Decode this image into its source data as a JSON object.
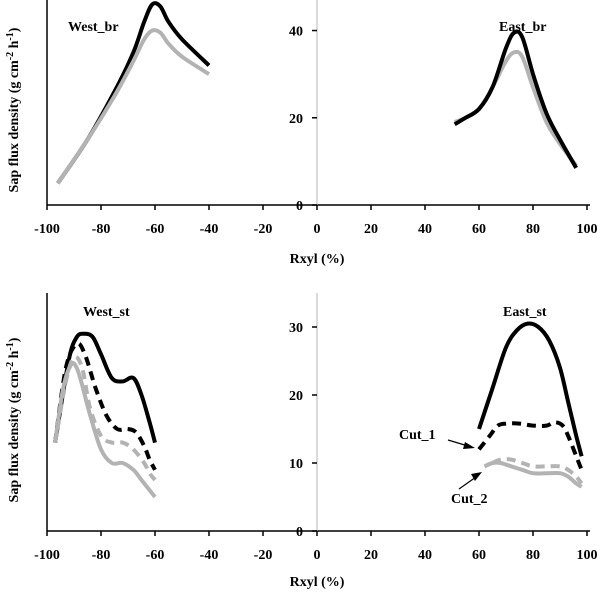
{
  "chart_data": [
    {
      "type": "line",
      "panel": "top",
      "xlabel": "Rxyl (%)",
      "ylabel": "Sap flux density (g cm-2 h-1)",
      "xlim": [
        -100,
        100
      ],
      "ylim": [
        0,
        47
      ],
      "xticks": [
        "-100",
        "-80",
        "-60",
        "-40",
        "-20",
        "0",
        "20",
        "40",
        "60",
        "80",
        "100"
      ],
      "yticks": [
        "0",
        "20",
        "40"
      ],
      "panel_labels": [
        "West_br",
        "East_br"
      ],
      "series": [
        {
          "name": "West_br black",
          "color": "#000000",
          "dash": "solid",
          "x": [
            -96,
            -85,
            -75,
            -68,
            -64,
            -61,
            -58,
            -55,
            -50,
            -40
          ],
          "y": [
            5,
            15,
            26,
            35,
            42,
            46,
            45.5,
            42,
            38,
            32
          ]
        },
        {
          "name": "West_br gray",
          "color": "#b3b3b3",
          "dash": "solid",
          "x": [
            -96,
            -85,
            -75,
            -68,
            -64,
            -61,
            -58,
            -55,
            -50,
            -40
          ],
          "y": [
            5,
            15,
            25,
            33,
            38,
            40,
            39.5,
            37,
            34,
            30
          ]
        },
        {
          "name": "East_br gray",
          "color": "#b3b3b3",
          "dash": "solid",
          "x": [
            51,
            55,
            60,
            65,
            70,
            73,
            76,
            80,
            85,
            90,
            96
          ],
          "y": [
            19,
            20,
            22,
            27,
            33,
            35,
            34,
            27,
            19,
            14,
            9
          ]
        },
        {
          "name": "East_br black",
          "color": "#000000",
          "dash": "solid",
          "x": [
            51,
            55,
            60,
            65,
            70,
            73,
            76,
            80,
            85,
            90,
            96
          ],
          "y": [
            18.5,
            20,
            22,
            27,
            36,
            39.5,
            38.5,
            30,
            21,
            15,
            8.5
          ]
        }
      ]
    },
    {
      "type": "line",
      "panel": "bottom",
      "xlabel": "Rxyl (%)",
      "ylabel": "Sap flux density (g cm-2 h-1)",
      "xlim": [
        -100,
        100
      ],
      "ylim": [
        0,
        35
      ],
      "xticks": [
        "-100",
        "-80",
        "-60",
        "-40",
        "-20",
        "0",
        "20",
        "40",
        "60",
        "80",
        "100"
      ],
      "yticks": [
        "0",
        "10",
        "20",
        "30"
      ],
      "panel_labels": [
        "West_st",
        "East_st",
        "Cut_1",
        "Cut_2"
      ],
      "series": [
        {
          "name": "West_st black",
          "color": "#000000",
          "dash": "solid",
          "x": [
            -97,
            -92,
            -89,
            -86,
            -83,
            -80,
            -76,
            -72,
            -68,
            -65,
            -62,
            -60
          ],
          "y": [
            13,
            25,
            28.5,
            29,
            28.5,
            26,
            22.5,
            22,
            22.5,
            20,
            16,
            13
          ]
        },
        {
          "name": "West_st black dashed",
          "color": "#000000",
          "dash": "dash",
          "x": [
            -97,
            -93,
            -89,
            -86,
            -82,
            -78,
            -74,
            -70,
            -67,
            -64,
            -62,
            -60
          ],
          "y": [
            13,
            24,
            27.5,
            26,
            21,
            17,
            15,
            15,
            14.5,
            12.5,
            10.5,
            9
          ]
        },
        {
          "name": "West_st gray dashed",
          "color": "#b3b3b3",
          "dash": "dash",
          "x": [
            -97,
            -93,
            -90,
            -87,
            -84,
            -80,
            -76,
            -72,
            -68,
            -64,
            -62,
            -60
          ],
          "y": [
            13,
            22,
            25.5,
            24,
            18,
            14,
            13,
            13,
            12,
            10,
            8.5,
            7.5
          ]
        },
        {
          "name": "West_st gray",
          "color": "#b3b3b3",
          "dash": "solid",
          "x": [
            -97,
            -94,
            -91,
            -89,
            -87,
            -84,
            -80,
            -76,
            -72,
            -68,
            -65,
            -62,
            -60
          ],
          "y": [
            13,
            21,
            24.5,
            24,
            21.5,
            17,
            12,
            10,
            10,
            9,
            7.5,
            6,
            5
          ]
        },
        {
          "name": "East_st black",
          "color": "#000000",
          "dash": "solid",
          "x": [
            60,
            65,
            70,
            74,
            78,
            82,
            86,
            90,
            93,
            96,
            98
          ],
          "y": [
            15,
            21,
            27,
            29.5,
            30.5,
            30,
            28,
            24,
            19,
            14,
            11
          ]
        },
        {
          "name": "Cut_1 black dashed",
          "color": "#000000",
          "dash": "dash",
          "x": [
            60,
            64,
            67,
            70,
            75,
            80,
            85,
            88,
            91,
            93,
            96,
            98
          ],
          "y": [
            12,
            14,
            15.5,
            15.8,
            15.8,
            15.5,
            15.5,
            16,
            15.5,
            14,
            11,
            9
          ]
        },
        {
          "name": "Cut_2 gray dashed",
          "color": "#b3b3b3",
          "dash": "dash",
          "x": [
            65,
            68,
            72,
            76,
            80,
            85,
            90,
            93,
            96,
            98
          ],
          "y": [
            10,
            10.5,
            10.5,
            10,
            9.5,
            9.5,
            9.5,
            9,
            8,
            7
          ]
        },
        {
          "name": "Cut_2 gray",
          "color": "#b3b3b3",
          "dash": "solid",
          "x": [
            62,
            65,
            68,
            72,
            76,
            80,
            85,
            90,
            93,
            96,
            98
          ],
          "y": [
            9.5,
            10,
            10,
            9.5,
            9,
            8.5,
            8.5,
            8.5,
            8,
            7,
            6.5
          ]
        }
      ]
    }
  ]
}
